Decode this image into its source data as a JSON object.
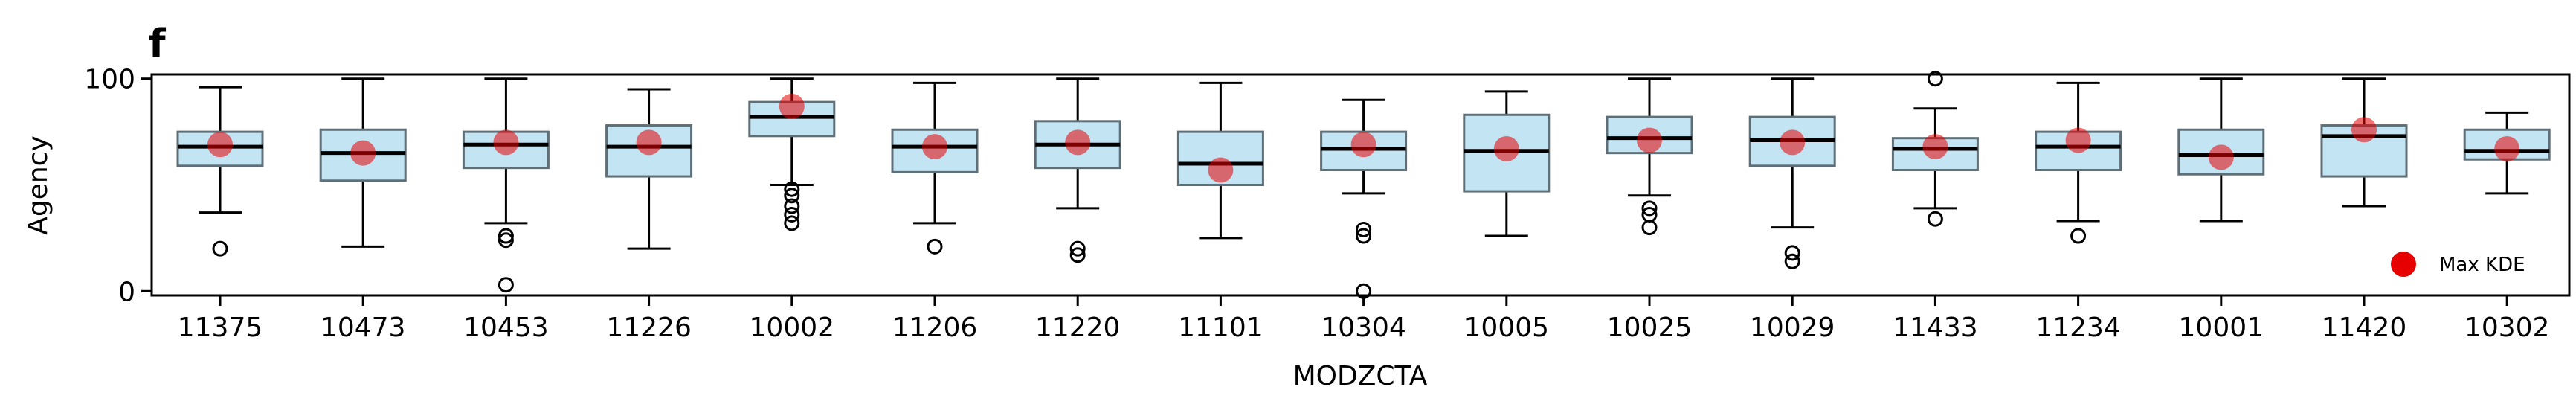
{
  "panel_label": "f",
  "colors": {
    "box_fill": "#c3e4f3",
    "box_edge": "#5f6f78",
    "median": "#000000",
    "whisker": "#000000",
    "max_kde": "#e60000",
    "max_kde_alpha": 0.55
  },
  "chart_data": {
    "type": "box",
    "xlabel": "MODZCTA",
    "ylabel": "Agency",
    "ylim": [
      -2,
      102
    ],
    "yticks": [
      0,
      100
    ],
    "grid": false,
    "legend": {
      "position": "bottom-right",
      "entries": [
        "Max KDE"
      ]
    },
    "categories": [
      "11375",
      "10473",
      "10453",
      "11226",
      "10002",
      "11206",
      "11220",
      "11101",
      "10304",
      "10005",
      "10025",
      "10029",
      "11433",
      "11234",
      "10001",
      "11420",
      "10302"
    ],
    "boxes": [
      {
        "q1": 59,
        "median": 68,
        "q3": 75,
        "whislo": 37,
        "whishi": 96,
        "outliers": [
          20
        ],
        "max_kde": 69
      },
      {
        "q1": 52,
        "median": 65,
        "q3": 76,
        "whislo": 21,
        "whishi": 100,
        "outliers": [],
        "max_kde": 65
      },
      {
        "q1": 58,
        "median": 69,
        "q3": 75,
        "whislo": 32,
        "whishi": 100,
        "outliers": [
          24,
          26,
          3
        ],
        "max_kde": 70
      },
      {
        "q1": 54,
        "median": 68,
        "q3": 78,
        "whislo": 20,
        "whishi": 95,
        "outliers": [],
        "max_kde": 70
      },
      {
        "q1": 73,
        "median": 82,
        "q3": 89,
        "whislo": 50,
        "whishi": 100,
        "outliers": [
          48,
          45,
          40,
          36,
          32
        ],
        "max_kde": 87
      },
      {
        "q1": 56,
        "median": 68,
        "q3": 76,
        "whislo": 32,
        "whishi": 98,
        "outliers": [
          21
        ],
        "max_kde": 68
      },
      {
        "q1": 58,
        "median": 69,
        "q3": 80,
        "whislo": 39,
        "whishi": 100,
        "outliers": [
          20,
          17
        ],
        "max_kde": 70
      },
      {
        "q1": 50,
        "median": 60,
        "q3": 75,
        "whislo": 25,
        "whishi": 98,
        "outliers": [],
        "max_kde": 57
      },
      {
        "q1": 57,
        "median": 67,
        "q3": 75,
        "whislo": 46,
        "whishi": 90,
        "outliers": [
          29,
          26,
          0
        ],
        "max_kde": 69
      },
      {
        "q1": 47,
        "median": 66,
        "q3": 83,
        "whislo": 26,
        "whishi": 94,
        "outliers": [],
        "max_kde": 67
      },
      {
        "q1": 65,
        "median": 72,
        "q3": 82,
        "whislo": 45,
        "whishi": 100,
        "outliers": [
          39,
          36,
          30
        ],
        "max_kde": 71
      },
      {
        "q1": 59,
        "median": 71,
        "q3": 82,
        "whislo": 30,
        "whishi": 100,
        "outliers": [
          18,
          14
        ],
        "max_kde": 70
      },
      {
        "q1": 57,
        "median": 67,
        "q3": 72,
        "whislo": 39,
        "whishi": 86,
        "outliers": [
          100,
          34
        ],
        "max_kde": 68
      },
      {
        "q1": 57,
        "median": 68,
        "q3": 75,
        "whislo": 33,
        "whishi": 98,
        "outliers": [
          26
        ],
        "max_kde": 71
      },
      {
        "q1": 55,
        "median": 64,
        "q3": 76,
        "whislo": 33,
        "whishi": 100,
        "outliers": [],
        "max_kde": 63
      },
      {
        "q1": 54,
        "median": 73,
        "q3": 78,
        "whislo": 40,
        "whishi": 100,
        "outliers": [],
        "max_kde": 76
      },
      {
        "q1": 62,
        "median": 66,
        "q3": 76,
        "whislo": 46,
        "whishi": 84,
        "outliers": [],
        "max_kde": 67
      }
    ]
  }
}
